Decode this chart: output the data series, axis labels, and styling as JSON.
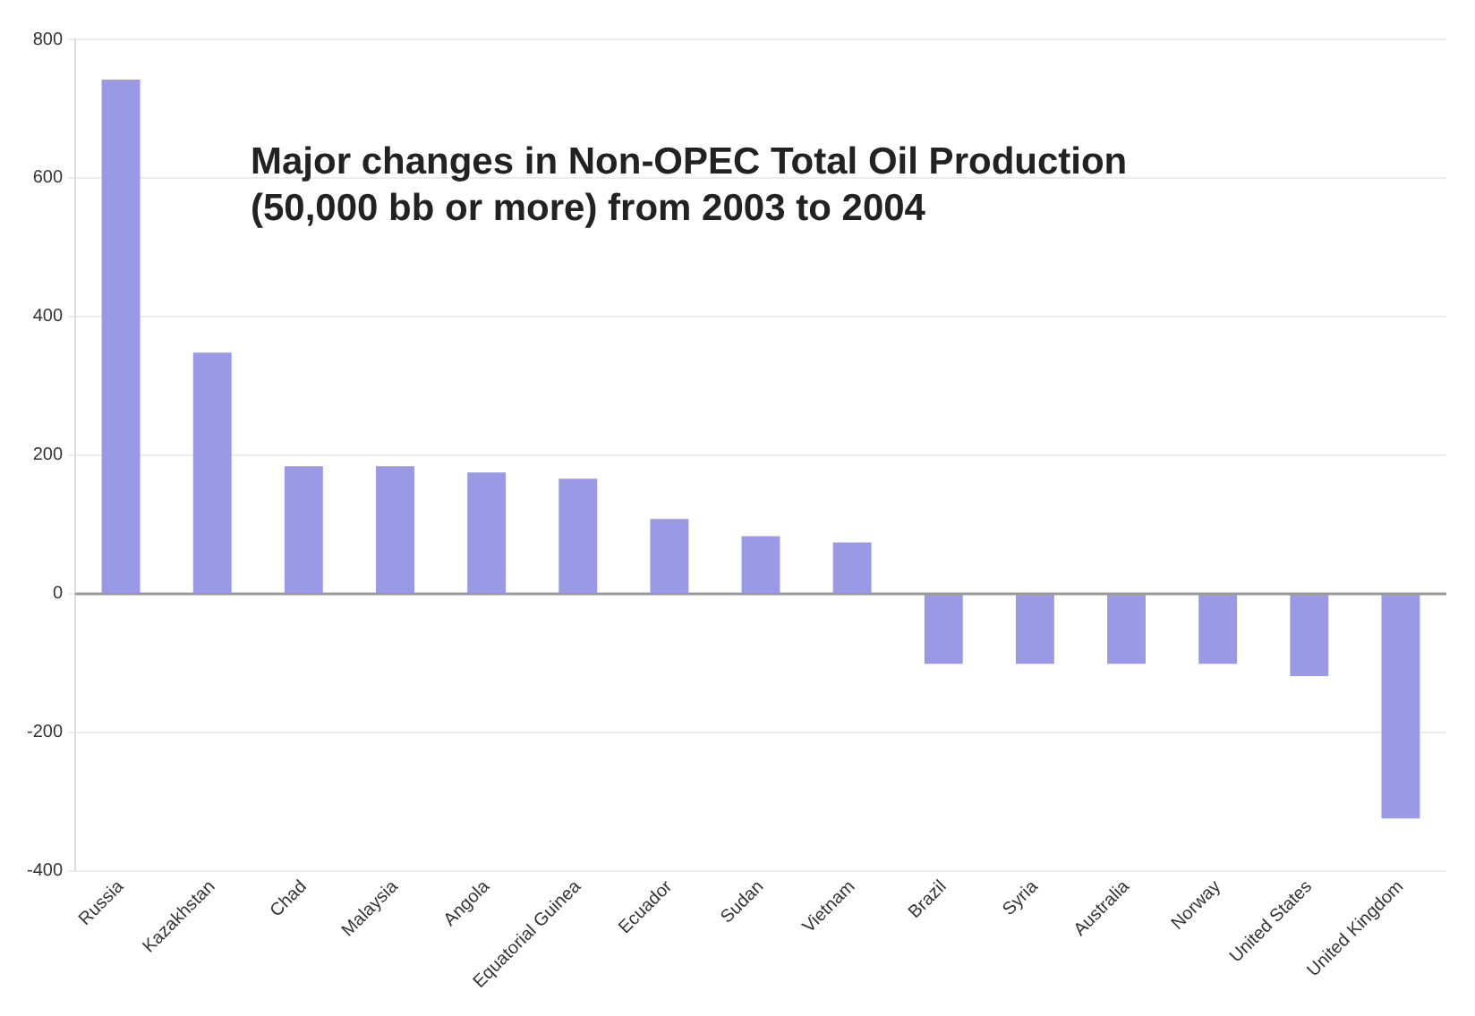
{
  "chart_data": {
    "type": "bar",
    "title": "Major changes in Non-OPEC Total Oil Production (50,000 bb or more) from 2003 to 2004",
    "categories": [
      "Russia",
      "Kazakhstan",
      "Chad",
      "Malaysia",
      "Angola",
      "Equatorial Guinea",
      "Ecuador",
      "Sudan",
      "Vietnam",
      "Brazil",
      "Syria",
      "Australia",
      "Norway",
      "United States",
      "United Kingdom"
    ],
    "values": [
      742,
      348,
      184,
      184,
      175,
      166,
      108,
      83,
      74,
      -101,
      -101,
      -101,
      -101,
      -119,
      -324
    ],
    "color": "#9999e6",
    "ylim": [
      -400,
      800
    ],
    "yticks": [
      -400,
      -200,
      0,
      200,
      400,
      600,
      800
    ],
    "grid": "y",
    "legend": false
  }
}
